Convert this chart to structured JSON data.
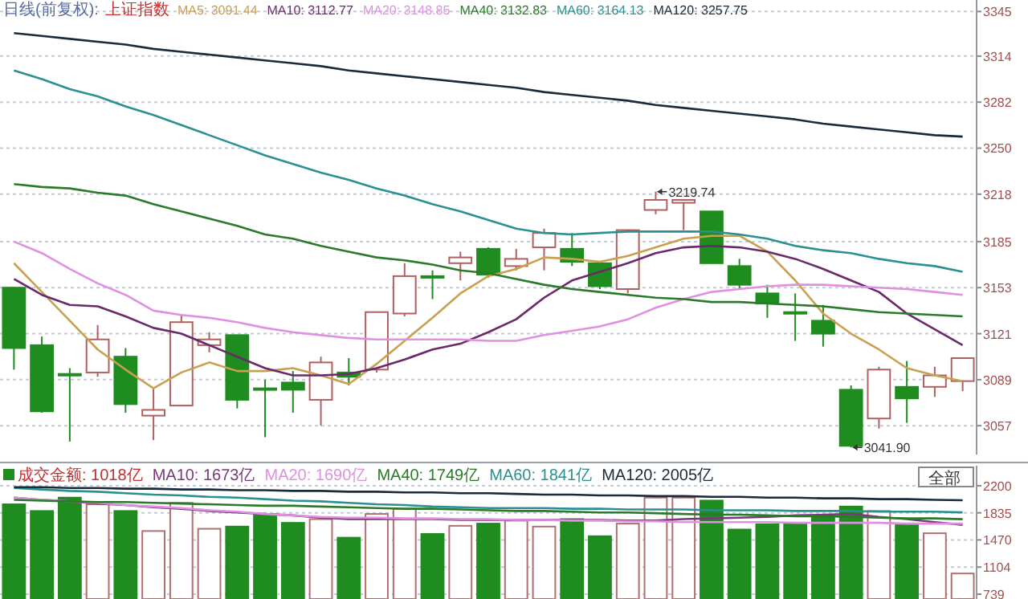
{
  "chart_data": [
    {
      "type": "candlestick",
      "title": "日线(前复权):",
      "subtitle": "上证指数",
      "categories": [
        null,
        null,
        null,
        null,
        null,
        null,
        null,
        null,
        null,
        null,
        null,
        null,
        null,
        null,
        null,
        null,
        null,
        null,
        null,
        null,
        null,
        null,
        null,
        null,
        null,
        null,
        null,
        null,
        null,
        null,
        null,
        null,
        null,
        null,
        null
      ],
      "ohlc": [
        [
          3153,
          3153,
          3096,
          3111
        ],
        [
          3113,
          3119,
          3066,
          3067
        ],
        [
          3093,
          3097,
          3046,
          3092
        ],
        [
          3094,
          3127,
          3091,
          3117
        ],
        [
          3105,
          3111,
          3066,
          3072
        ],
        [
          3064,
          3083,
          3047,
          3068
        ],
        [
          3071,
          3134,
          3071,
          3129
        ],
        [
          3113,
          3122,
          3108,
          3117
        ],
        [
          3120,
          3120,
          3069,
          3075
        ],
        [
          3083,
          3089,
          3049,
          3082
        ],
        [
          3087,
          3095,
          3066,
          3082
        ],
        [
          3075,
          3105,
          3057,
          3101
        ],
        [
          3094,
          3104,
          3085,
          3091
        ],
        [
          3096,
          3136,
          3094,
          3136
        ],
        [
          3135,
          3170,
          3133,
          3161
        ],
        [
          3161,
          3165,
          3145,
          3160
        ],
        [
          3170,
          3178,
          3158,
          3174
        ],
        [
          3180,
          3181,
          3160,
          3162
        ],
        [
          3168,
          3180,
          3165,
          3173
        ],
        [
          3181,
          3194,
          3165,
          3191
        ],
        [
          3180,
          3191,
          3168,
          3171
        ],
        [
          3170,
          3170,
          3152,
          3154
        ],
        [
          3152,
          3193,
          3149,
          3193
        ],
        [
          3207,
          3219.74,
          3204,
          3214
        ],
        [
          3212,
          3214,
          3193,
          3214
        ],
        [
          3206,
          3206,
          3170,
          3170
        ],
        [
          3168,
          3173,
          3152,
          3155
        ],
        [
          3149,
          3155,
          3132,
          3142
        ],
        [
          3136,
          3149,
          3116,
          3135
        ],
        [
          3130,
          3141,
          3112,
          3121
        ],
        [
          3082,
          3085,
          3041.9,
          3043
        ],
        [
          3062,
          3098,
          3055,
          3096
        ],
        [
          3084,
          3102,
          3059,
          3076
        ],
        [
          3084,
          3098,
          3077,
          3092
        ],
        [
          3088,
          3104,
          3081,
          3104
        ]
      ],
      "colors": [
        "#1e8c1e",
        "#1e8c1e",
        "#1e8c1e",
        "#b06060",
        "#1e8c1e",
        "#b06060",
        "#b06060",
        "#b06060",
        "#1e8c1e",
        "#1e8c1e",
        "#1e8c1e",
        "#b06060",
        "#1e8c1e",
        "#b06060",
        "#b06060",
        "#1e8c1e",
        "#b06060",
        "#1e8c1e",
        "#b06060",
        "#b06060",
        "#1e8c1e",
        "#1e8c1e",
        "#b06060",
        "#b06060",
        "#b06060",
        "#1e8c1e",
        "#1e8c1e",
        "#1e8c1e",
        "#1e8c1e",
        "#1e8c1e",
        "#1e8c1e",
        "#b06060",
        "#1e8c1e",
        "#b06060",
        "#b06060"
      ],
      "series": [
        {
          "name": "MA5: 3091.44",
          "type": "line",
          "color": "#c8a050",
          "values": [
            3170,
            3150,
            3130,
            3110,
            3096,
            3083,
            3094,
            3101,
            3095,
            3095,
            3097,
            3092,
            3086,
            3100,
            3116,
            3132,
            3149,
            3161,
            3166,
            3174,
            3173,
            3171,
            3175,
            3181,
            3187,
            3189,
            3189,
            3178,
            3158,
            3135,
            3121,
            3110,
            3097,
            3092,
            3088
          ]
        },
        {
          "name": "MA10: 3112.77",
          "type": "line",
          "color": "#6a2a6a",
          "values": [
            3159,
            3148,
            3141,
            3140,
            3133,
            3125,
            3121,
            3113,
            3105,
            3097,
            3092,
            3092,
            3093,
            3097,
            3103,
            3110,
            3114,
            3122,
            3131,
            3146,
            3158,
            3164,
            3170,
            3177,
            3181,
            3182,
            3181,
            3178,
            3173,
            3166,
            3158,
            3150,
            3135,
            3124,
            3113
          ]
        },
        {
          "name": "MA20: 3148.85",
          "type": "line",
          "color": "#e090e0",
          "values": [
            3185,
            3177,
            3166,
            3156,
            3148,
            3137,
            3134,
            3132,
            3129,
            3125,
            3122,
            3120,
            3118,
            3117,
            3117,
            3117,
            3117,
            3116,
            3116,
            3120,
            3123,
            3126,
            3131,
            3139,
            3145,
            3150,
            3152,
            3154,
            3155,
            3155,
            3154,
            3153,
            3152,
            3150,
            3148
          ]
        },
        {
          "name": "MA40: 3132.83",
          "type": "line",
          "color": "#2a7a2a",
          "values": [
            3225,
            3223,
            3222,
            3219,
            3217,
            3211,
            3206,
            3201,
            3196,
            3190,
            3187,
            3182,
            3178,
            3174,
            3172,
            3169,
            3165,
            3163,
            3159,
            3155,
            3152,
            3150,
            3148,
            3146,
            3145,
            3143,
            3143,
            3142,
            3141,
            3140,
            3138,
            3136,
            3135,
            3134,
            3133
          ]
        },
        {
          "name": "MA60: 3164.13",
          "type": "line",
          "color": "#2a9090",
          "values": [
            3304,
            3298,
            3291,
            3286,
            3279,
            3273,
            3266,
            3259,
            3252,
            3245,
            3239,
            3233,
            3228,
            3222,
            3217,
            3211,
            3206,
            3200,
            3194,
            3191,
            3190,
            3191,
            3192,
            3192,
            3192,
            3192,
            3190,
            3187,
            3182,
            3179,
            3177,
            3173,
            3170,
            3168,
            3164
          ]
        },
        {
          "name": "MA120: 3257.75",
          "type": "line",
          "color": "#1a2a3a",
          "values": [
            3330,
            3328,
            3326,
            3324,
            3322,
            3319,
            3317,
            3315,
            3313,
            3311,
            3309,
            3307,
            3304,
            3302,
            3300,
            3298,
            3296,
            3294,
            3292,
            3289,
            3287,
            3285,
            3283,
            3280,
            3278,
            3276,
            3274,
            3272,
            3270,
            3267,
            3265,
            3263,
            3261,
            3259,
            3258
          ]
        }
      ],
      "ylim": [
        3037,
        3353
      ],
      "yticks": [
        3057,
        3089,
        3121,
        3153,
        3185,
        3218,
        3250,
        3282,
        3314,
        3345
      ],
      "grid": "y",
      "legend": "top left",
      "annotations": [
        "3219.74",
        "3041.90"
      ]
    },
    {
      "type": "bar",
      "categories": [
        null,
        null,
        null,
        null,
        null,
        null,
        null,
        null,
        null,
        null,
        null,
        null,
        null,
        null,
        null,
        null,
        null,
        null,
        null,
        null,
        null,
        null,
        null,
        null,
        null,
        null,
        null,
        null,
        null,
        null,
        null,
        null,
        null,
        null,
        null
      ],
      "series": [
        {
          "name": "成交金额: 1018亿",
          "color": "#1e8c1e",
          "colors": [
            "#1e8c1e",
            "#1e8c1e",
            "#1e8c1e",
            "#ffffff",
            "#1e8c1e",
            "#ffffff",
            "#ffffff",
            "#ffffff",
            "#1e8c1e",
            "#1e8c1e",
            "#1e8c1e",
            "#ffffff",
            "#1e8c1e",
            "#ffffff",
            "#ffffff",
            "#1e8c1e",
            "#ffffff",
            "#1e8c1e",
            "#ffffff",
            "#ffffff",
            "#1e8c1e",
            "#1e8c1e",
            "#ffffff",
            "#ffffff",
            "#ffffff",
            "#1e8c1e",
            "#1e8c1e",
            "#1e8c1e",
            "#1e8c1e",
            "#1e8c1e",
            "#1e8c1e",
            "#ffffff",
            "#1e8c1e",
            "#ffffff",
            "#ffffff"
          ],
          "values": [
            1950,
            1860,
            2040,
            1950,
            1860,
            1590,
            1970,
            1620,
            1650,
            1820,
            1700,
            1750,
            1500,
            1820,
            1890,
            1550,
            1660,
            1690,
            1730,
            1650,
            1750,
            1520,
            1690,
            2040,
            2040,
            2000,
            1610,
            1680,
            1700,
            1790,
            1920,
            1860,
            1680,
            1560,
            1018
          ]
        },
        {
          "name": "MA10: 1673亿",
          "type": "line",
          "color": "#7a3a7a",
          "values": [
            2040,
            2010,
            1990,
            1960,
            1940,
            1910,
            1890,
            1860,
            1840,
            1820,
            1800,
            1770,
            1750,
            1750,
            1750,
            1750,
            1740,
            1740,
            1740,
            1740,
            1740,
            1740,
            1730,
            1730,
            1750,
            1760,
            1770,
            1780,
            1800,
            1810,
            1820,
            1780,
            1750,
            1710,
            1673
          ]
        },
        {
          "name": "MA20: 1690亿",
          "type": "line",
          "color": "#e090e0",
          "values": [
            2040,
            2010,
            1990,
            1970,
            1940,
            1920,
            1900,
            1870,
            1850,
            1820,
            1800,
            1780,
            1770,
            1770,
            1760,
            1760,
            1750,
            1750,
            1740,
            1740,
            1730,
            1730,
            1720,
            1720,
            1710,
            1710,
            1710,
            1710,
            1700,
            1700,
            1700,
            1700,
            1690,
            1690,
            1690
          ]
        },
        {
          "name": "MA40: 1749亿",
          "type": "line",
          "color": "#2a7a2a",
          "values": [
            2010,
            2000,
            1990,
            1980,
            1980,
            1970,
            1960,
            1950,
            1940,
            1930,
            1930,
            1920,
            1910,
            1900,
            1890,
            1890,
            1880,
            1870,
            1860,
            1860,
            1850,
            1840,
            1840,
            1830,
            1820,
            1810,
            1810,
            1800,
            1790,
            1790,
            1780,
            1770,
            1760,
            1760,
            1749
          ]
        },
        {
          "name": "MA60: 1841亿",
          "type": "line",
          "color": "#2a9090",
          "values": [
            2170,
            2150,
            2130,
            2120,
            2100,
            2080,
            2070,
            2050,
            2040,
            2020,
            2000,
            1990,
            1970,
            1950,
            1940,
            1920,
            1910,
            1900,
            1900,
            1900,
            1890,
            1890,
            1880,
            1880,
            1880,
            1870,
            1870,
            1870,
            1860,
            1860,
            1860,
            1850,
            1850,
            1850,
            1841
          ]
        },
        {
          "name": "MA120: 2005亿",
          "type": "line",
          "color": "#1a2a3a",
          "values": [
            2180,
            2180,
            2170,
            2170,
            2160,
            2160,
            2150,
            2150,
            2140,
            2140,
            2130,
            2130,
            2120,
            2120,
            2110,
            2110,
            2100,
            2100,
            2090,
            2080,
            2080,
            2070,
            2070,
            2060,
            2060,
            2050,
            2050,
            2040,
            2040,
            2030,
            2030,
            2020,
            2020,
            2010,
            2005
          ]
        }
      ],
      "ylim": [
        674,
        2470
      ],
      "yticks": [
        739,
        1104,
        1470,
        1835,
        2200
      ],
      "grid": "y",
      "legend": "top left",
      "annotations": [
        "全部"
      ]
    }
  ]
}
